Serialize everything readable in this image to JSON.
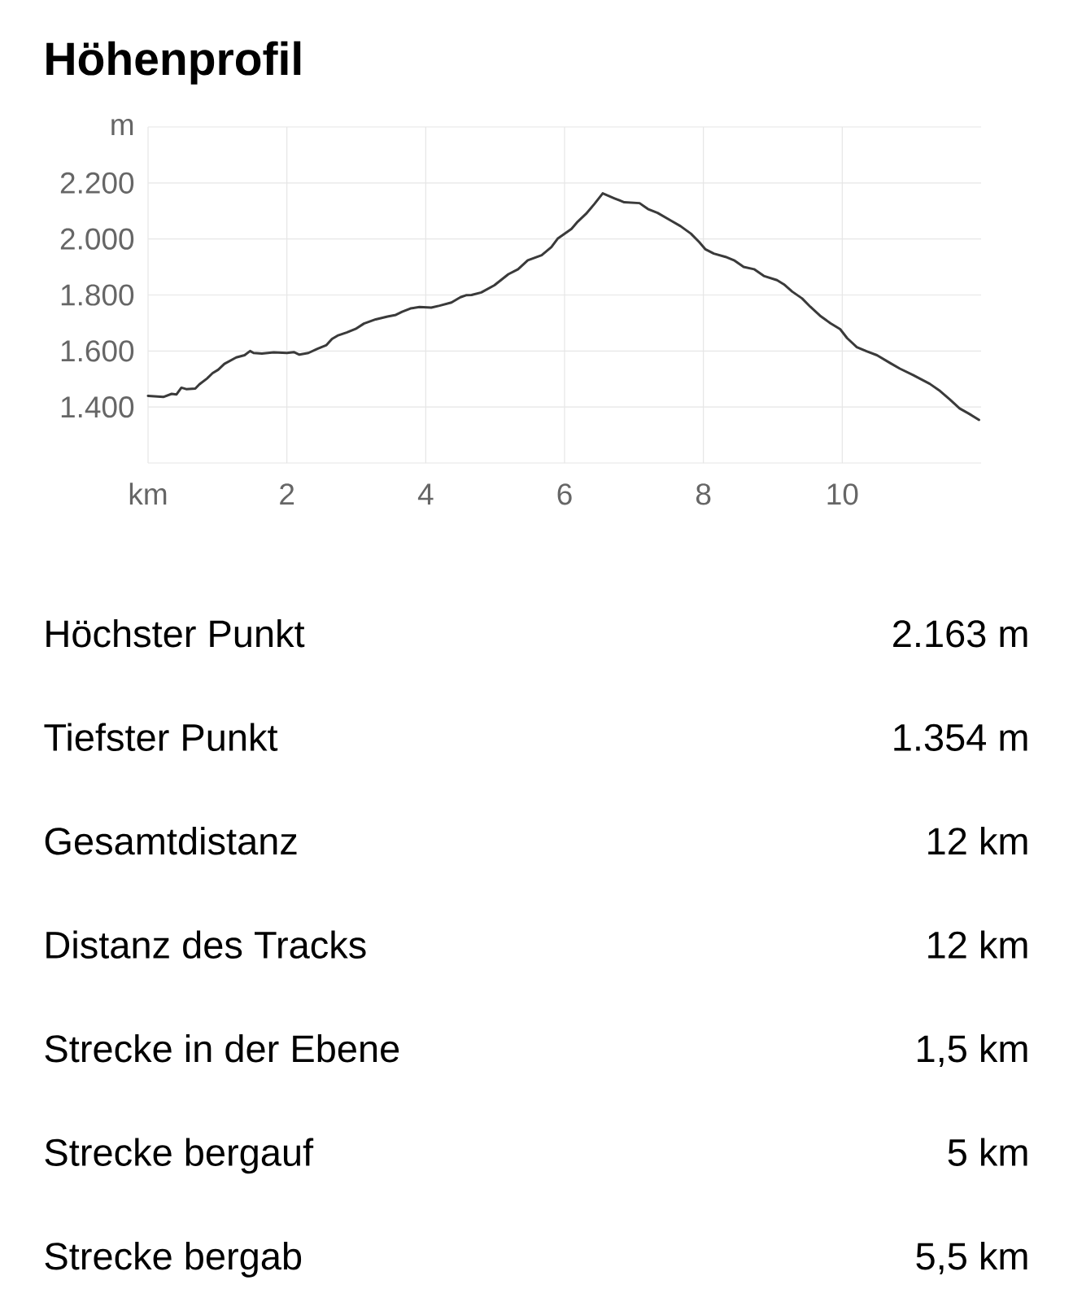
{
  "chart_data": {
    "type": "line",
    "title": "Höhenprofil",
    "x": [
      0,
      0.22,
      0.34,
      0.41,
      0.48,
      0.55,
      0.68,
      0.74,
      0.85,
      0.93,
      1.01,
      1.1,
      1.27,
      1.39,
      1.47,
      1.52,
      1.64,
      1.81,
      2.0,
      2.1,
      2.18,
      2.31,
      2.44,
      2.57,
      2.65,
      2.73,
      2.86,
      2.99,
      3.11,
      3.28,
      3.45,
      3.57,
      3.66,
      3.78,
      3.91,
      4.08,
      4.2,
      4.37,
      4.5,
      4.58,
      4.66,
      4.8,
      4.99,
      5.19,
      5.33,
      5.47,
      5.67,
      5.81,
      5.9,
      6.1,
      6.19,
      6.31,
      6.43,
      6.55,
      6.72,
      6.86,
      7.08,
      7.2,
      7.34,
      7.53,
      7.67,
      7.82,
      7.94,
      8.03,
      8.15,
      8.32,
      8.44,
      8.58,
      8.73,
      8.87,
      9.06,
      9.16,
      9.28,
      9.42,
      9.54,
      9.68,
      9.83,
      9.97,
      10.07,
      10.21,
      10.35,
      10.5,
      10.69,
      10.83,
      11.02,
      11.26,
      11.41,
      11.55,
      11.69,
      11.84,
      11.97
    ],
    "values": [
      1440,
      1436,
      1447,
      1445,
      1469,
      1464,
      1466,
      1481,
      1502,
      1521,
      1533,
      1554,
      1577,
      1585,
      1600,
      1593,
      1591,
      1595,
      1593,
      1596,
      1587,
      1593,
      1608,
      1621,
      1643,
      1655,
      1666,
      1679,
      1698,
      1713,
      1723,
      1729,
      1740,
      1752,
      1757,
      1755,
      1762,
      1773,
      1792,
      1799,
      1800,
      1809,
      1835,
      1874,
      1892,
      1924,
      1942,
      1971,
      2001,
      2036,
      2062,
      2090,
      2125,
      2163,
      2145,
      2131,
      2128,
      2107,
      2093,
      2066,
      2046,
      2019,
      1989,
      1963,
      1948,
      1936,
      1924,
      1900,
      1892,
      1868,
      1853,
      1838,
      1812,
      1788,
      1758,
      1726,
      1699,
      1678,
      1646,
      1614,
      1599,
      1585,
      1557,
      1537,
      1514,
      1483,
      1457,
      1427,
      1395,
      1374,
      1354
    ],
    "color": "#3a3a3a",
    "line_style": "solid",
    "xlim": [
      0,
      12
    ],
    "ylim": [
      1200,
      2400
    ],
    "xticks": [
      {
        "value": 0,
        "label": "km"
      },
      2,
      4,
      6,
      8,
      10
    ],
    "yticks": [
      {
        "value": 1200,
        "label": null
      },
      {
        "value": 1400,
        "label": "1.400"
      },
      {
        "value": 1600,
        "label": "1.600"
      },
      {
        "value": 1800,
        "label": "1.800"
      },
      {
        "value": 2000,
        "label": "2.000"
      },
      {
        "value": 2200,
        "label": "2.200"
      },
      {
        "value": 2400,
        "label": "m"
      }
    ],
    "grid": true,
    "annotations": [
      "Höchster Punkt",
      "2.163 m",
      "Tiefster Punkt",
      "1.354 m",
      "Gesamtdistanz",
      "12 km",
      "Distanz des Tracks",
      "12 km",
      "Strecke in der Ebene",
      "1,5 km",
      "Strecke bergauf",
      "5 km",
      "Strecke bergab",
      "5,5 km"
    ]
  }
}
